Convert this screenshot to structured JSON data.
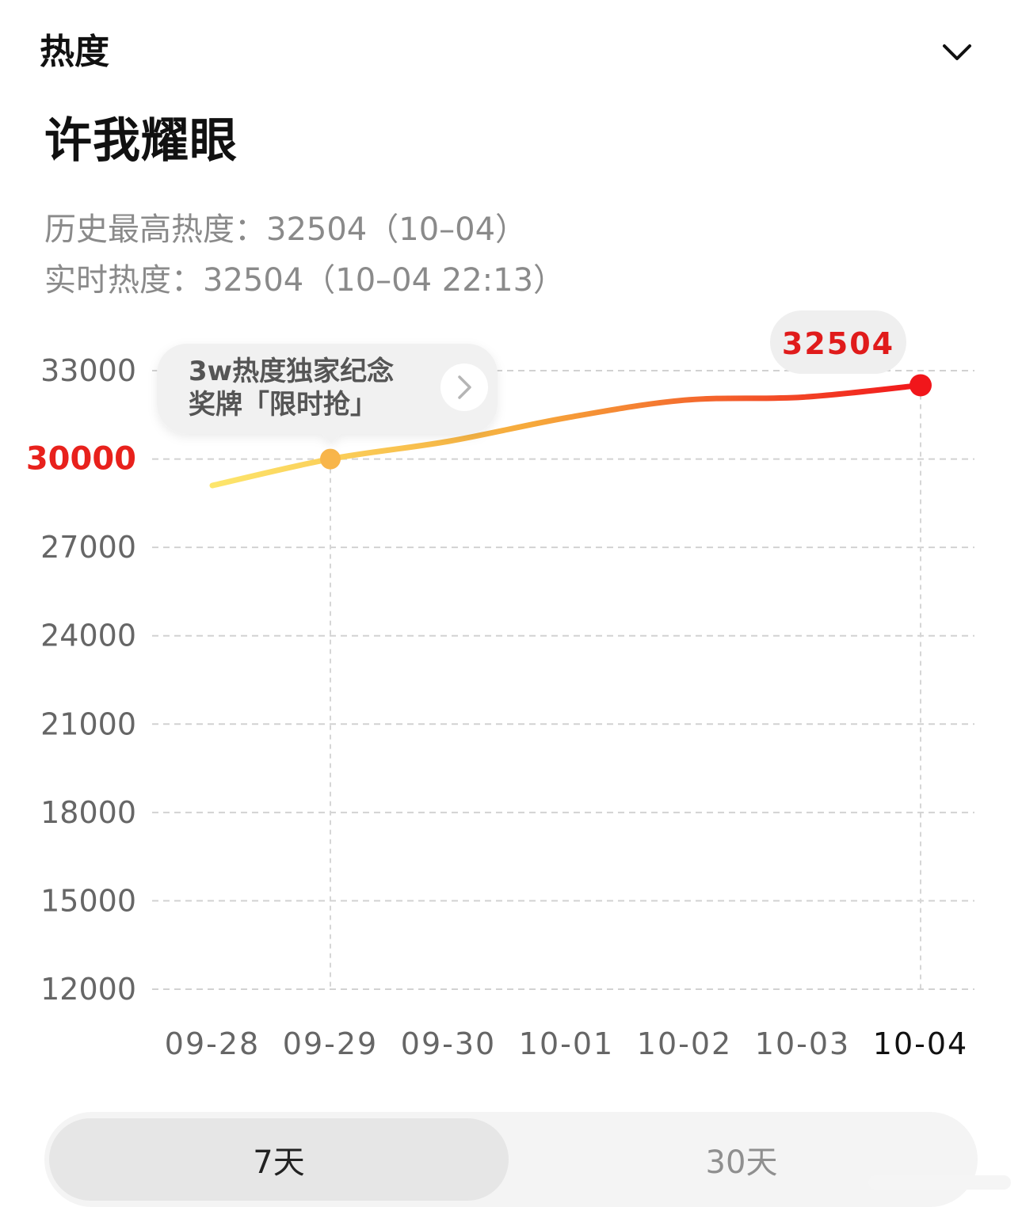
{
  "header": {
    "title": "热度"
  },
  "topic": {
    "title": "许我耀眼"
  },
  "stats": {
    "peak_label": "历史最高热度：",
    "peak_value": "32504（10–04）",
    "realtime_label": "实时热度：",
    "realtime_value": "32504（10–04 22:13）"
  },
  "promo": {
    "text_line1": "3w热度独家纪念",
    "text_line2": "奖牌「限时抢」",
    "arrow_icon": "chevron-right-icon"
  },
  "chart_data": {
    "type": "line",
    "title": "",
    "xlabel": "",
    "ylabel": "",
    "x": [
      "09-28",
      "09-29",
      "09-30",
      "10-01",
      "10-02",
      "10-03",
      "10-04"
    ],
    "y": [
      29100,
      30000,
      30600,
      31400,
      32000,
      32100,
      32504
    ],
    "yticks": [
      12000,
      15000,
      18000,
      21000,
      24000,
      27000,
      30000,
      33000
    ],
    "ylim": [
      12000,
      33000
    ],
    "highlight_tick": 30000,
    "highlight_point_x": "09-29",
    "current_label": "32504",
    "grid": true,
    "gradient": {
      "start": "#fde66c",
      "mid": "#f6a93b",
      "end": "#f1161b"
    },
    "colors": {
      "highlight_tick": "#e8211c",
      "current_label": "#e01b1b",
      "axis_text": "#666666",
      "last_x": "#111111"
    }
  },
  "tabs": [
    {
      "label": "7天",
      "selected": true
    },
    {
      "label": "30天",
      "selected": false
    }
  ]
}
